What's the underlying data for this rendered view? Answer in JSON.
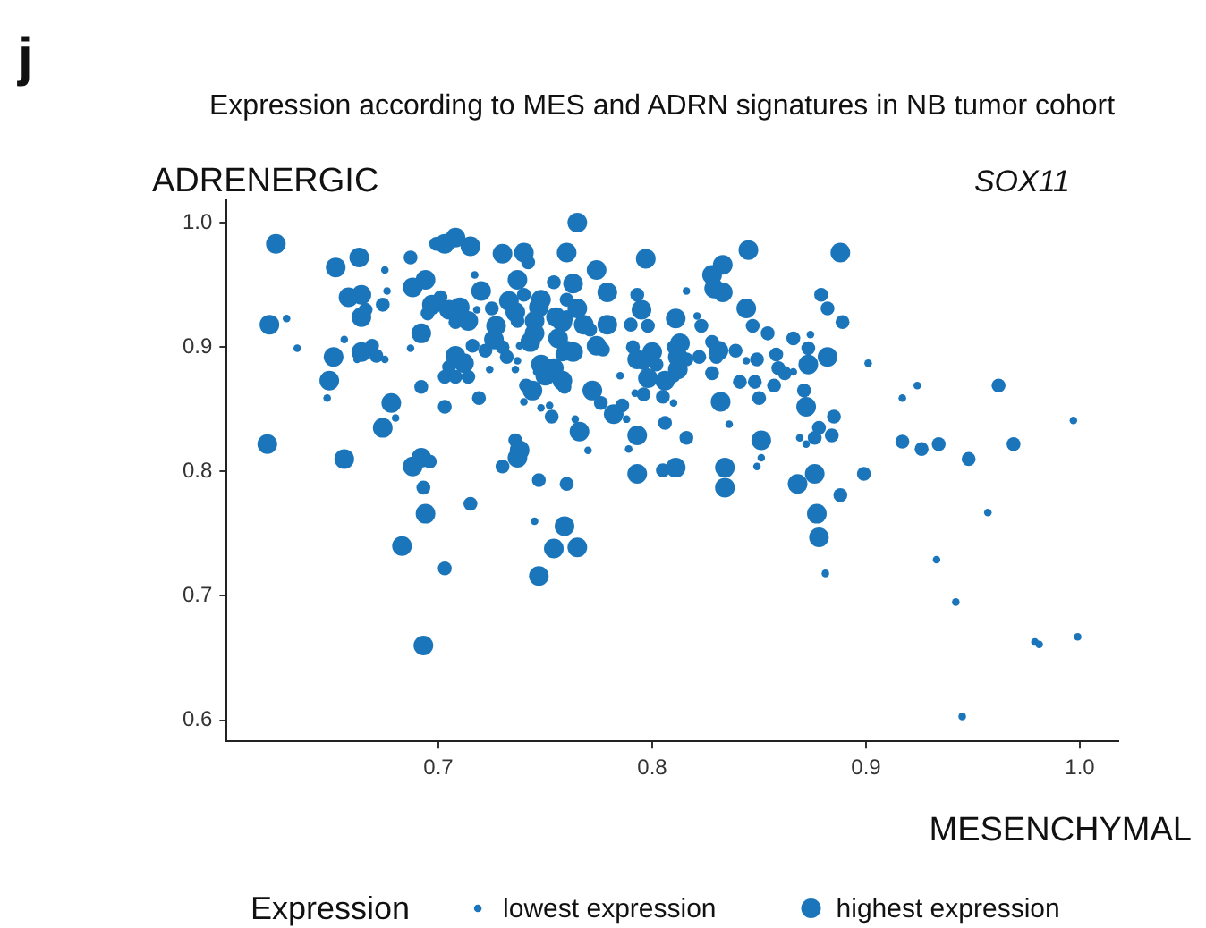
{
  "chart_data": {
    "type": "bubble",
    "title": "Expression according to MES and ADRN signatures in NB tumor cohort",
    "subtitle": "SOX11",
    "xlabel": "MESENCHYMAL",
    "ylabel": "ADRENERGIC",
    "legend_title": "Expression",
    "annotations": [
      "j"
    ],
    "size_legend": [
      {
        "value": 0.15,
        "label": "lowest expression"
      },
      {
        "value": 1,
        "label": "highest expression"
      }
    ],
    "grid": false,
    "xlim": [
      0.601,
      1.018
    ],
    "xticks": [
      0.7,
      0.8,
      0.9,
      {
        "value": 1,
        "label": "1.0"
      }
    ],
    "ylim": [
      0.583,
      1.018
    ],
    "yticks": [
      0.6,
      0.7,
      0.8,
      0.9,
      {
        "value": 1,
        "label": "1.0"
      }
    ],
    "series": [
      {
        "color": "#1b75bb",
        "x": [
          0.624,
          0.663,
          0.652,
          0.675,
          0.687,
          0.699,
          0.703,
          0.658,
          0.664,
          0.676,
          0.674,
          0.688,
          0.694,
          0.701,
          0.697,
          0.664,
          0.666,
          0.695,
          0.705,
          0.621,
          0.629,
          0.692,
          0.656,
          0.634,
          0.651,
          0.664,
          0.669,
          0.671,
          0.675,
          0.662,
          0.687,
          0.705,
          0.703,
          0.649,
          0.648,
          0.692,
          0.678,
          0.68,
          0.703,
          0.674,
          0.62,
          0.656,
          0.688,
          0.692,
          0.696,
          0.693,
          0.694,
          0.683,
          0.703,
          0.693,
          0.765,
          0.708,
          0.715,
          0.73,
          0.74,
          0.742,
          0.76,
          0.797,
          0.717,
          0.737,
          0.774,
          0.72,
          0.74,
          0.754,
          0.763,
          0.779,
          0.793,
          0.733,
          0.748,
          0.747,
          0.76,
          0.71,
          0.725,
          0.736,
          0.765,
          0.795,
          0.718,
          0.745,
          0.755,
          0.708,
          0.714,
          0.727,
          0.737,
          0.768,
          0.779,
          0.79,
          0.798,
          0.76,
          0.758,
          0.771,
          0.745,
          0.756,
          0.743,
          0.716,
          0.726,
          0.73,
          0.722,
          0.738,
          0.774,
          0.777,
          0.791,
          0.8,
          0.76,
          0.763,
          0.758,
          0.708,
          0.712,
          0.732,
          0.737,
          0.748,
          0.754,
          0.793,
          0.796,
          0.802,
          0.724,
          0.736,
          0.746,
          0.75,
          0.708,
          0.714,
          0.758,
          0.785,
          0.798,
          0.741,
          0.744,
          0.759,
          0.772,
          0.792,
          0.796,
          0.719,
          0.74,
          0.776,
          0.748,
          0.752,
          0.786,
          0.782,
          0.788,
          0.753,
          0.764,
          0.766,
          0.736,
          0.738,
          0.737,
          0.73,
          0.77,
          0.793,
          0.789,
          0.793,
          0.747,
          0.76,
          0.715,
          0.745,
          0.759,
          0.754,
          0.765,
          0.747,
          0.845,
          0.888,
          0.833,
          0.828,
          0.829,
          0.833,
          0.816,
          0.879,
          0.882,
          0.844,
          0.811,
          0.821,
          0.823,
          0.847,
          0.854,
          0.889,
          0.866,
          0.874,
          0.828,
          0.813,
          0.81,
          0.839,
          0.873,
          0.831,
          0.812,
          0.816,
          0.822,
          0.83,
          0.844,
          0.849,
          0.858,
          0.882,
          0.901,
          0.859,
          0.862,
          0.873,
          0.866,
          0.812,
          0.81,
          0.806,
          0.828,
          0.841,
          0.848,
          0.857,
          0.871,
          0.805,
          0.81,
          0.832,
          0.85,
          0.872,
          0.836,
          0.806,
          0.885,
          0.878,
          0.884,
          0.816,
          0.851,
          0.869,
          0.872,
          0.876,
          0.851,
          0.805,
          0.811,
          0.834,
          0.849,
          0.876,
          0.899,
          0.834,
          0.868,
          0.888,
          0.877,
          0.878,
          0.881,
          0.924,
          0.962,
          0.917,
          0.997,
          0.917,
          0.926,
          0.934,
          0.948,
          0.969,
          0.957,
          0.933,
          0.942,
          0.979,
          0.981,
          0.999,
          0.945
        ],
        "values": [
          0.983,
          0.972,
          0.964,
          0.962,
          0.972,
          0.983,
          0.983,
          0.94,
          0.942,
          0.945,
          0.934,
          0.948,
          0.954,
          0.94,
          0.934,
          0.924,
          0.93,
          0.927,
          0.93,
          0.918,
          0.923,
          0.911,
          0.906,
          0.899,
          0.892,
          0.896,
          0.901,
          0.893,
          0.89,
          0.89,
          0.899,
          0.884,
          0.876,
          0.873,
          0.859,
          0.868,
          0.855,
          0.843,
          0.852,
          0.835,
          0.822,
          0.81,
          0.804,
          0.811,
          0.808,
          0.787,
          0.766,
          0.74,
          0.722,
          0.66,
          1.0,
          0.988,
          0.981,
          0.975,
          0.976,
          0.968,
          0.976,
          0.971,
          0.958,
          0.954,
          0.962,
          0.945,
          0.942,
          0.952,
          0.951,
          0.944,
          0.942,
          0.937,
          0.938,
          0.932,
          0.938,
          0.932,
          0.931,
          0.928,
          0.931,
          0.93,
          0.93,
          0.921,
          0.924,
          0.92,
          0.921,
          0.917,
          0.921,
          0.918,
          0.918,
          0.918,
          0.917,
          0.924,
          0.92,
          0.914,
          0.911,
          0.907,
          0.904,
          0.901,
          0.906,
          0.9,
          0.897,
          0.901,
          0.901,
          0.898,
          0.9,
          0.896,
          0.897,
          0.896,
          0.894,
          0.893,
          0.887,
          0.892,
          0.889,
          0.886,
          0.883,
          0.89,
          0.887,
          0.886,
          0.882,
          0.882,
          0.88,
          0.877,
          0.876,
          0.876,
          0.873,
          0.877,
          0.875,
          0.869,
          0.865,
          0.868,
          0.865,
          0.863,
          0.862,
          0.859,
          0.856,
          0.855,
          0.851,
          0.853,
          0.853,
          0.846,
          0.842,
          0.844,
          0.842,
          0.832,
          0.825,
          0.817,
          0.811,
          0.804,
          0.817,
          0.829,
          0.818,
          0.798,
          0.793,
          0.79,
          0.774,
          0.76,
          0.756,
          0.738,
          0.739,
          0.716,
          0.978,
          0.976,
          0.966,
          0.958,
          0.947,
          0.944,
          0.945,
          0.942,
          0.931,
          0.931,
          0.923,
          0.925,
          0.917,
          0.917,
          0.911,
          0.92,
          0.907,
          0.91,
          0.904,
          0.903,
          0.9,
          0.897,
          0.899,
          0.897,
          0.892,
          0.89,
          0.892,
          0.892,
          0.889,
          0.89,
          0.894,
          0.892,
          0.887,
          0.883,
          0.879,
          0.886,
          0.88,
          0.882,
          0.877,
          0.873,
          0.879,
          0.872,
          0.872,
          0.869,
          0.865,
          0.86,
          0.855,
          0.856,
          0.859,
          0.852,
          0.838,
          0.839,
          0.844,
          0.835,
          0.829,
          0.827,
          0.825,
          0.827,
          0.822,
          0.827,
          0.811,
          0.801,
          0.803,
          0.803,
          0.804,
          0.798,
          0.798,
          0.787,
          0.79,
          0.781,
          0.766,
          0.747,
          0.718,
          0.869,
          0.869,
          0.859,
          0.841,
          0.824,
          0.818,
          0.822,
          0.81,
          0.822,
          0.767,
          0.729,
          0.695,
          0.663,
          0.661,
          0.667,
          0.603
        ],
        "sizes": [
          1,
          1,
          1,
          0.15,
          0.5,
          0.5,
          1,
          1,
          1,
          0.15,
          0.5,
          1,
          1,
          0.5,
          1,
          1,
          0.5,
          0.5,
          1,
          1,
          0.15,
          1,
          0.15,
          0.15,
          1,
          1,
          0.5,
          0.5,
          0.15,
          0.15,
          0.15,
          0.5,
          0.5,
          1,
          0.15,
          0.5,
          1,
          0.15,
          0.5,
          1,
          1,
          1,
          1,
          1,
          0.5,
          0.5,
          1,
          1,
          0.5,
          1,
          1,
          1,
          1,
          1,
          1,
          0.5,
          1,
          1,
          0.15,
          1,
          1,
          1,
          0.5,
          0.5,
          1,
          1,
          0.5,
          1,
          1,
          1,
          0.5,
          1,
          0.5,
          1,
          1,
          1,
          0.15,
          1,
          1,
          0.5,
          1,
          1,
          0.5,
          1,
          1,
          0.5,
          0.5,
          0.5,
          1,
          0.5,
          1,
          1,
          1,
          0.5,
          1,
          0.5,
          0.5,
          0.15,
          1,
          0.5,
          0.5,
          1,
          1,
          1,
          0.5,
          1,
          1,
          0.5,
          0.15,
          1,
          1,
          1,
          0.5,
          0.5,
          0.15,
          0.15,
          0.15,
          1,
          0.5,
          0.5,
          1,
          0.15,
          1,
          0.5,
          1,
          0.5,
          1,
          0.15,
          0.5,
          0.5,
          0.15,
          0.5,
          0.15,
          0.15,
          0.5,
          1,
          0.15,
          0.5,
          0.15,
          1,
          0.5,
          1,
          1,
          0.5,
          0.15,
          1,
          0.15,
          1,
          0.5,
          0.5,
          0.5,
          0.15,
          1,
          1,
          1,
          1,
          1,
          1,
          1,
          1,
          1,
          1,
          0.15,
          0.5,
          0.5,
          1,
          1,
          0.15,
          0.5,
          0.5,
          0.5,
          0.5,
          0.5,
          0.15,
          0.5,
          1,
          0.5,
          0.5,
          0.5,
          1,
          1,
          0.5,
          0.5,
          0.5,
          0.15,
          0.5,
          0.5,
          1,
          0.15,
          0.5,
          0.5,
          1,
          0.15,
          1,
          0.5,
          1,
          0.5,
          0.5,
          0.5,
          0.5,
          0.5,
          0.5,
          0.15,
          1,
          0.5,
          1,
          0.15,
          0.5,
          0.5,
          0.5,
          0.5,
          0.5,
          1,
          0.15,
          0.15,
          0.5,
          0.15,
          0.5,
          1,
          1,
          0.15,
          1,
          0.5,
          1,
          1,
          0.5,
          1,
          1,
          0.15,
          0.15,
          0.5,
          0.15,
          0.15,
          0.5,
          0.5,
          0.5,
          0.5,
          0.5,
          0.15,
          0.15,
          0.15,
          0.15,
          0.15,
          0.15,
          0.15
        ]
      }
    ]
  }
}
